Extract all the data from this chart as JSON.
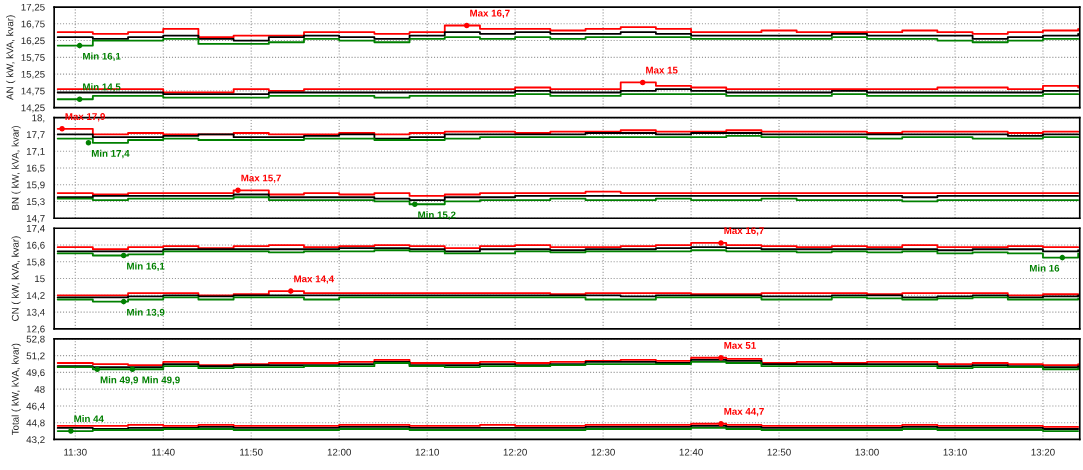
{
  "chart_data": [
    {
      "type": "step",
      "ylabel": "AN ( kW, kVA, kvar)",
      "x": [
        11.4667,
        11.5333,
        11.6,
        11.6667,
        11.7333,
        11.8,
        11.8667,
        11.9333,
        12.0,
        12.0667,
        12.1333,
        12.2,
        12.2667,
        12.3333,
        12.4,
        12.4667,
        12.5333,
        12.6,
        12.6667,
        12.7333,
        12.8,
        12.8667,
        12.9333,
        13.0,
        13.0667,
        13.1333,
        13.2,
        13.2667,
        13.3333,
        13.4
      ],
      "series": [
        {
          "color": "#ff0000",
          "values": [
            16.5,
            16.45,
            16.5,
            16.6,
            16.35,
            16.4,
            16.4,
            16.5,
            16.5,
            16.45,
            16.5,
            16.7,
            16.6,
            16.6,
            16.55,
            16.6,
            16.65,
            16.6,
            16.5,
            16.5,
            16.55,
            16.5,
            16.5,
            16.5,
            16.55,
            16.5,
            16.45,
            16.5,
            16.55,
            16.6
          ]
        },
        {
          "color": "#000000",
          "values": [
            16.35,
            16.3,
            16.35,
            16.4,
            16.3,
            16.25,
            16.35,
            16.4,
            16.35,
            16.3,
            16.4,
            16.5,
            16.45,
            16.5,
            16.45,
            16.45,
            16.5,
            16.45,
            16.4,
            16.4,
            16.4,
            16.4,
            16.45,
            16.4,
            16.4,
            16.4,
            16.3,
            16.35,
            16.4,
            16.45
          ]
        },
        {
          "color": "#008000",
          "values": [
            16.1,
            16.25,
            16.25,
            16.3,
            16.15,
            16.15,
            16.2,
            16.3,
            16.25,
            16.2,
            16.3,
            16.35,
            16.3,
            16.35,
            16.3,
            16.35,
            16.35,
            16.35,
            16.3,
            16.3,
            16.3,
            16.3,
            16.35,
            16.3,
            16.3,
            16.25,
            16.2,
            16.25,
            16.3,
            16.3
          ]
        },
        {
          "color": "#ff0000",
          "values": [
            14.8,
            14.8,
            14.8,
            14.7,
            14.7,
            14.8,
            14.75,
            14.8,
            14.8,
            14.8,
            14.8,
            14.8,
            14.8,
            14.85,
            14.8,
            14.8,
            15.0,
            14.9,
            14.85,
            14.8,
            14.8,
            14.8,
            14.8,
            14.8,
            14.8,
            14.85,
            14.85,
            14.8,
            14.9,
            14.85
          ]
        },
        {
          "color": "#000000",
          "values": [
            14.7,
            14.7,
            14.7,
            14.65,
            14.65,
            14.65,
            14.7,
            14.7,
            14.7,
            14.7,
            14.7,
            14.7,
            14.7,
            14.75,
            14.7,
            14.7,
            14.75,
            14.8,
            14.75,
            14.7,
            14.7,
            14.7,
            14.75,
            14.7,
            14.7,
            14.7,
            14.7,
            14.7,
            14.75,
            14.75
          ]
        },
        {
          "color": "#008000",
          "values": [
            14.5,
            14.6,
            14.6,
            14.55,
            14.55,
            14.55,
            14.6,
            14.6,
            14.6,
            14.55,
            14.6,
            14.6,
            14.6,
            14.65,
            14.6,
            14.6,
            14.65,
            14.65,
            14.65,
            14.6,
            14.6,
            14.6,
            14.65,
            14.6,
            14.6,
            14.6,
            14.6,
            14.6,
            14.65,
            14.65
          ]
        }
      ],
      "xlim": [
        11.46,
        13.403
      ],
      "ylim": [
        14.25,
        17.25
      ],
      "xticks": [
        {
          "value": 11.5,
          "label": null
        },
        {
          "value": 11.6667,
          "label": null
        },
        {
          "value": 11.8333,
          "label": null
        },
        {
          "value": 12.0,
          "label": null
        },
        {
          "value": 12.1667,
          "label": null
        },
        {
          "value": 12.3333,
          "label": null
        },
        {
          "value": 12.5,
          "label": null
        },
        {
          "value": 12.6667,
          "label": null
        },
        {
          "value": 12.8333,
          "label": null
        },
        {
          "value": 13.0,
          "label": null
        },
        {
          "value": 13.1667,
          "label": null
        },
        {
          "value": 13.3333,
          "label": null
        }
      ],
      "yticks": [
        {
          "value": 14.25,
          "label": "14,25"
        },
        {
          "value": 14.75,
          "label": "14,75"
        },
        {
          "value": 15.25,
          "label": "15,25"
        },
        {
          "value": 15.75,
          "label": "15,75"
        },
        {
          "value": 16.25,
          "label": "16,25"
        },
        {
          "value": 16.75,
          "label": "16,75"
        },
        {
          "value": 17.25,
          "label": "17,25"
        }
      ],
      "annotations": [
        {
          "text": "Max 16,7",
          "x": 12.2417,
          "y": 16.7
        },
        {
          "text": "Min 16,1",
          "x": 11.5083,
          "y": 16.1
        },
        {
          "text": "Min 14,5",
          "x": 11.5083,
          "y": 14.5
        },
        {
          "text": "Max 15",
          "x": 12.575,
          "y": 15.0
        }
      ],
      "grid": true,
      "line_style": "solid",
      "tick_labels": "y"
    },
    {
      "type": "step",
      "ylabel": "BN ( kW, kVA, kvar)",
      "x": [
        11.4667,
        11.5333,
        11.6,
        11.6667,
        11.7333,
        11.8,
        11.8667,
        11.9333,
        12.0,
        12.0667,
        12.1333,
        12.2,
        12.2667,
        12.3333,
        12.4,
        12.4667,
        12.5333,
        12.6,
        12.6667,
        12.7333,
        12.8,
        12.8667,
        12.9333,
        13.0,
        13.0667,
        13.1333,
        13.2,
        13.2667,
        13.3333,
        13.4
      ],
      "series": [
        {
          "color": "#ff0000",
          "values": [
            17.9,
            17.7,
            17.75,
            17.7,
            17.7,
            17.75,
            17.7,
            17.7,
            17.75,
            17.7,
            17.75,
            17.8,
            17.8,
            17.75,
            17.8,
            17.8,
            17.85,
            17.8,
            17.8,
            17.85,
            17.8,
            17.8,
            17.8,
            17.75,
            17.8,
            17.8,
            17.8,
            17.75,
            17.8,
            17.8
          ]
        },
        {
          "color": "#000000",
          "values": [
            17.7,
            17.6,
            17.6,
            17.65,
            17.7,
            17.6,
            17.6,
            17.65,
            17.7,
            17.55,
            17.6,
            17.7,
            17.7,
            17.7,
            17.7,
            17.75,
            17.75,
            17.7,
            17.75,
            17.75,
            17.7,
            17.7,
            17.7,
            17.7,
            17.7,
            17.7,
            17.7,
            17.65,
            17.7,
            17.7
          ]
        },
        {
          "color": "#008000",
          "values": [
            17.55,
            17.4,
            17.5,
            17.55,
            17.5,
            17.5,
            17.5,
            17.55,
            17.55,
            17.5,
            17.5,
            17.55,
            17.6,
            17.6,
            17.6,
            17.6,
            17.6,
            17.6,
            17.6,
            17.65,
            17.6,
            17.6,
            17.6,
            17.55,
            17.6,
            17.6,
            17.55,
            17.55,
            17.6,
            17.6
          ]
        },
        {
          "color": "#ff0000",
          "values": [
            15.6,
            15.55,
            15.6,
            15.6,
            15.6,
            15.7,
            15.55,
            15.6,
            15.55,
            15.6,
            15.5,
            15.55,
            15.6,
            15.6,
            15.6,
            15.65,
            15.6,
            15.6,
            15.6,
            15.6,
            15.6,
            15.6,
            15.6,
            15.6,
            15.6,
            15.6,
            15.6,
            15.6,
            15.6,
            15.6
          ]
        },
        {
          "color": "#000000",
          "values": [
            15.45,
            15.5,
            15.5,
            15.5,
            15.5,
            15.55,
            15.45,
            15.45,
            15.45,
            15.4,
            15.35,
            15.45,
            15.45,
            15.5,
            15.5,
            15.5,
            15.5,
            15.5,
            15.5,
            15.5,
            15.5,
            15.5,
            15.5,
            15.5,
            15.45,
            15.5,
            15.5,
            15.5,
            15.5,
            15.5
          ]
        },
        {
          "color": "#008000",
          "values": [
            15.4,
            15.35,
            15.4,
            15.4,
            15.4,
            15.45,
            15.35,
            15.35,
            15.35,
            15.3,
            15.2,
            15.3,
            15.35,
            15.35,
            15.4,
            15.35,
            15.35,
            15.4,
            15.35,
            15.35,
            15.4,
            15.35,
            15.35,
            15.35,
            15.3,
            15.35,
            15.35,
            15.35,
            15.35,
            15.35
          ]
        }
      ],
      "xlim": [
        11.46,
        13.403
      ],
      "ylim": [
        14.7,
        18.3
      ],
      "xticks": [
        {
          "value": 11.5,
          "label": null
        },
        {
          "value": 11.6667,
          "label": null
        },
        {
          "value": 11.8333,
          "label": null
        },
        {
          "value": 12.0,
          "label": null
        },
        {
          "value": 12.1667,
          "label": null
        },
        {
          "value": 12.3333,
          "label": null
        },
        {
          "value": 12.5,
          "label": null
        },
        {
          "value": 12.6667,
          "label": null
        },
        {
          "value": 12.8333,
          "label": null
        },
        {
          "value": 13.0,
          "label": null
        },
        {
          "value": 13.1667,
          "label": null
        },
        {
          "value": 13.3333,
          "label": null
        }
      ],
      "yticks": [
        {
          "value": 14.7,
          "label": "14,7"
        },
        {
          "value": 15.3,
          "label": "15,3"
        },
        {
          "value": 15.9,
          "label": "15,9"
        },
        {
          "value": 16.5,
          "label": "16,5"
        },
        {
          "value": 17.1,
          "label": "17,1"
        },
        {
          "value": 17.7,
          "label": "17,7"
        },
        {
          "value": 18.3,
          "label": "18,"
        }
      ],
      "annotations": [
        {
          "text": "Max 17,9",
          "x": 11.475,
          "y": 17.9
        },
        {
          "text": "Min 17,4",
          "x": 11.525,
          "y": 17.4
        },
        {
          "text": "Max 15,7",
          "x": 11.8083,
          "y": 15.7
        },
        {
          "text": "Min 15,2",
          "x": 12.1433,
          "y": 15.2
        }
      ],
      "grid": true,
      "line_style": "solid",
      "tick_labels": "y"
    },
    {
      "type": "step",
      "ylabel": "CN ( kW, kVA, kvar)",
      "x": [
        11.4667,
        11.5333,
        11.6,
        11.6667,
        11.7333,
        11.8,
        11.8667,
        11.9333,
        12.0,
        12.0667,
        12.1333,
        12.2,
        12.2667,
        12.3333,
        12.4,
        12.4667,
        12.5333,
        12.6,
        12.6667,
        12.7333,
        12.8,
        12.8667,
        12.9333,
        13.0,
        13.0667,
        13.1333,
        13.2,
        13.2667,
        13.3333,
        13.4
      ],
      "series": [
        {
          "color": "#ff0000",
          "values": [
            16.5,
            16.4,
            16.5,
            16.55,
            16.45,
            16.55,
            16.6,
            16.5,
            16.55,
            16.6,
            16.55,
            16.45,
            16.55,
            16.6,
            16.5,
            16.5,
            16.55,
            16.6,
            16.7,
            16.6,
            16.55,
            16.5,
            16.55,
            16.5,
            16.6,
            16.5,
            16.5,
            16.55,
            16.5,
            16.5
          ]
        },
        {
          "color": "#000000",
          "values": [
            16.3,
            16.3,
            16.3,
            16.4,
            16.4,
            16.4,
            16.4,
            16.4,
            16.45,
            16.45,
            16.4,
            16.3,
            16.4,
            16.4,
            16.35,
            16.4,
            16.4,
            16.45,
            16.5,
            16.45,
            16.4,
            16.4,
            16.4,
            16.4,
            16.4,
            16.35,
            16.4,
            16.4,
            16.3,
            16.35
          ]
        },
        {
          "color": "#008000",
          "values": [
            16.2,
            16.1,
            16.15,
            16.3,
            16.3,
            16.3,
            16.25,
            16.3,
            16.3,
            16.35,
            16.3,
            16.2,
            16.2,
            16.3,
            16.25,
            16.3,
            16.3,
            16.3,
            16.35,
            16.3,
            16.3,
            16.25,
            16.3,
            16.25,
            16.3,
            16.2,
            16.25,
            16.2,
            16.0,
            16.2
          ]
        },
        {
          "color": "#ff0000",
          "values": [
            14.2,
            14.2,
            14.3,
            14.3,
            14.2,
            14.25,
            14.4,
            14.3,
            14.3,
            14.3,
            14.3,
            14.3,
            14.3,
            14.3,
            14.25,
            14.3,
            14.3,
            14.3,
            14.25,
            14.25,
            14.3,
            14.3,
            14.3,
            14.25,
            14.3,
            14.3,
            14.3,
            14.2,
            14.25,
            14.2
          ]
        },
        {
          "color": "#000000",
          "values": [
            14.1,
            14.1,
            14.15,
            14.2,
            14.15,
            14.2,
            14.2,
            14.2,
            14.2,
            14.2,
            14.2,
            14.2,
            14.2,
            14.2,
            14.2,
            14.2,
            14.15,
            14.2,
            14.2,
            14.2,
            14.15,
            14.15,
            14.2,
            14.2,
            14.1,
            14.15,
            14.2,
            14.1,
            14.15,
            14.2
          ]
        },
        {
          "color": "#008000",
          "values": [
            14.0,
            13.9,
            14.0,
            14.1,
            14.0,
            14.1,
            14.1,
            14.0,
            14.1,
            14.1,
            14.1,
            14.1,
            14.1,
            14.1,
            14.1,
            14.0,
            14.0,
            14.1,
            14.1,
            14.1,
            14.0,
            14.0,
            14.1,
            14.05,
            14.0,
            14.05,
            14.1,
            14.0,
            14.0,
            14.05
          ]
        }
      ],
      "xlim": [
        11.46,
        13.403
      ],
      "ylim": [
        12.6,
        17.4
      ],
      "xticks": [
        {
          "value": 11.5,
          "label": null
        },
        {
          "value": 11.6667,
          "label": null
        },
        {
          "value": 11.8333,
          "label": null
        },
        {
          "value": 12.0,
          "label": null
        },
        {
          "value": 12.1667,
          "label": null
        },
        {
          "value": 12.3333,
          "label": null
        },
        {
          "value": 12.5,
          "label": null
        },
        {
          "value": 12.6667,
          "label": null
        },
        {
          "value": 12.8333,
          "label": null
        },
        {
          "value": 13.0,
          "label": null
        },
        {
          "value": 13.1667,
          "label": null
        },
        {
          "value": 13.3333,
          "label": null
        }
      ],
      "yticks": [
        {
          "value": 12.6,
          "label": "12,6"
        },
        {
          "value": 13.4,
          "label": "13,4"
        },
        {
          "value": 14.2,
          "label": "14,2"
        },
        15,
        {
          "value": 15.8,
          "label": "15,8"
        },
        {
          "value": 16.6,
          "label": "16,6"
        },
        {
          "value": 17.4,
          "label": "17,4"
        }
      ],
      "annotations": [
        {
          "text": "Min 16,1",
          "x": 11.5917,
          "y": 16.1
        },
        {
          "text": "Max 14,4",
          "x": 11.9083,
          "y": 14.4
        },
        {
          "text": "Min 13,9",
          "x": 11.5917,
          "y": 13.9
        },
        {
          "text": "Max 16,7",
          "x": 12.7233,
          "y": 16.7
        },
        {
          "text": "Min 16",
          "x": 13.37,
          "y": 16.0
        }
      ],
      "grid": true,
      "line_style": "solid",
      "tick_labels": "y"
    },
    {
      "type": "step",
      "ylabel": "Total ( kW, kVA, kvar)",
      "x": [
        11.4667,
        11.5333,
        11.6,
        11.6667,
        11.7333,
        11.8,
        11.8667,
        11.9333,
        12.0,
        12.0667,
        12.1333,
        12.2,
        12.2667,
        12.3333,
        12.4,
        12.4667,
        12.5333,
        12.6,
        12.6667,
        12.7333,
        12.8,
        12.8667,
        12.9333,
        13.0,
        13.0667,
        13.1333,
        13.2,
        13.2667,
        13.3333,
        13.4
      ],
      "series": [
        {
          "color": "#ff0000",
          "values": [
            50.5,
            50.4,
            50.3,
            50.6,
            50.3,
            50.4,
            50.5,
            50.5,
            50.6,
            50.8,
            50.5,
            50.5,
            50.6,
            50.5,
            50.6,
            50.7,
            50.8,
            50.7,
            51.0,
            50.9,
            50.5,
            50.6,
            50.5,
            50.6,
            50.6,
            50.4,
            50.5,
            50.4,
            50.3,
            50.4
          ]
        },
        {
          "color": "#000000",
          "values": [
            50.2,
            50.1,
            50.1,
            50.4,
            50.2,
            50.3,
            50.3,
            50.3,
            50.4,
            50.6,
            50.3,
            50.3,
            50.4,
            50.3,
            50.4,
            50.6,
            50.6,
            50.5,
            50.8,
            50.7,
            50.4,
            50.4,
            50.4,
            50.4,
            50.4,
            50.2,
            50.3,
            50.2,
            50.1,
            50.2
          ]
        },
        {
          "color": "#008000",
          "values": [
            50.1,
            49.9,
            49.9,
            50.2,
            50.0,
            50.1,
            50.1,
            50.2,
            50.2,
            50.5,
            50.2,
            50.1,
            50.2,
            50.2,
            50.3,
            50.4,
            50.4,
            50.4,
            50.6,
            50.5,
            50.2,
            50.2,
            50.2,
            50.2,
            50.2,
            50.0,
            50.1,
            50.1,
            49.9,
            50.0
          ]
        },
        {
          "color": "#ff0000",
          "values": [
            44.5,
            44.5,
            44.6,
            44.5,
            44.6,
            44.5,
            44.5,
            44.5,
            44.6,
            44.6,
            44.5,
            44.5,
            44.6,
            44.5,
            44.5,
            44.6,
            44.6,
            44.6,
            44.7,
            44.6,
            44.5,
            44.5,
            44.5,
            44.5,
            44.6,
            44.5,
            44.5,
            44.5,
            44.4,
            44.4
          ]
        },
        {
          "color": "#000000",
          "values": [
            44.3,
            44.2,
            44.3,
            44.3,
            44.4,
            44.3,
            44.3,
            44.3,
            44.4,
            44.4,
            44.3,
            44.3,
            44.3,
            44.3,
            44.3,
            44.4,
            44.4,
            44.4,
            44.5,
            44.4,
            44.3,
            44.3,
            44.3,
            44.3,
            44.4,
            44.3,
            44.3,
            44.3,
            44.2,
            44.2
          ]
        },
        {
          "color": "#008000",
          "values": [
            44.0,
            44.1,
            44.1,
            44.2,
            44.2,
            44.1,
            44.1,
            44.1,
            44.2,
            44.2,
            44.1,
            44.1,
            44.1,
            44.1,
            44.1,
            44.2,
            44.2,
            44.2,
            44.3,
            44.2,
            44.1,
            44.1,
            44.1,
            44.1,
            44.2,
            44.1,
            44.1,
            44.1,
            44.0,
            44.0
          ]
        }
      ],
      "xlim": [
        11.46,
        13.403
      ],
      "ylim": [
        43.2,
        52.8
      ],
      "xticks": [
        {
          "value": 11.5,
          "label": "11:30"
        },
        {
          "value": 11.6667,
          "label": "11:40"
        },
        {
          "value": 11.8333,
          "label": "11:50"
        },
        {
          "value": 12.0,
          "label": "12:00"
        },
        {
          "value": 12.1667,
          "label": "12:10"
        },
        {
          "value": 12.3333,
          "label": "12:20"
        },
        {
          "value": 12.5,
          "label": "12:30"
        },
        {
          "value": 12.6667,
          "label": "12:40"
        },
        {
          "value": 12.8333,
          "label": "12:50"
        },
        {
          "value": 13.0,
          "label": "13:00"
        },
        {
          "value": 13.1667,
          "label": "13:10"
        },
        {
          "value": 13.3333,
          "label": "13:20"
        }
      ],
      "yticks": [
        {
          "value": 43.2,
          "label": "43,2"
        },
        {
          "value": 44.8,
          "label": "44,8"
        },
        {
          "value": 46.4,
          "label": "46,4"
        },
        48,
        {
          "value": 49.6,
          "label": "49,6"
        },
        {
          "value": 51.2,
          "label": "51,2"
        },
        {
          "value": 52.8,
          "label": "52,8"
        }
      ],
      "annotations": [
        {
          "text": "Min 49,9",
          "x": 11.5417,
          "y": 49.9
        },
        {
          "text": "Min 49,9",
          "x": 11.6083,
          "y": 49.9
        },
        {
          "text": "Min 44",
          "x": 11.4917,
          "y": 44.0
        },
        {
          "text": "Max 51",
          "x": 12.7233,
          "y": 51.0
        },
        {
          "text": "Max 44,7",
          "x": 12.7233,
          "y": 44.7
        }
      ],
      "grid": true,
      "line_style": "solid"
    }
  ]
}
